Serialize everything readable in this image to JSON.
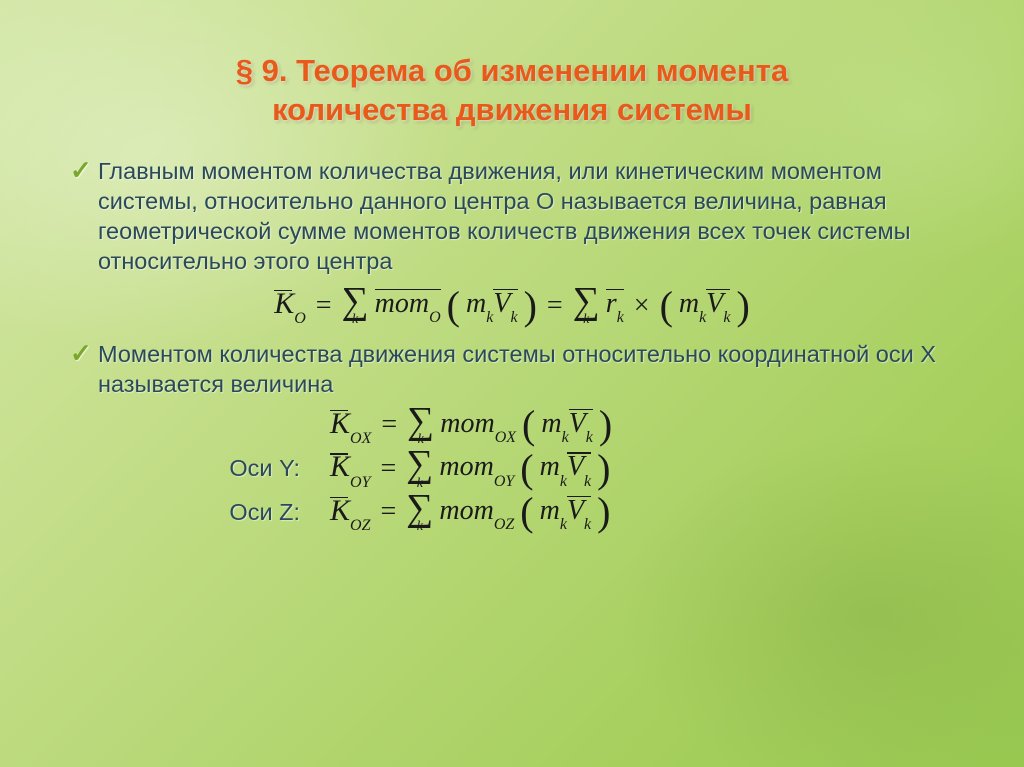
{
  "title_line1": "§ 9. Теорема об изменении момента",
  "title_line2": "количества движения системы",
  "bullet1": "Главным моментом количества движения,  или кинетическим моментом системы, относительно данного центра О называется величина, равная геометрической сумме  моментов количеств движения всех точек системы относительно этого центра",
  "bullet2": "Моментом количества движения системы относительно координатной оси X называется величина",
  "axisY": "Оси Y:",
  "axisZ": "Оси Z:",
  "colors": {
    "title": "#e85a1a",
    "body": "#2a4a5a",
    "check": "#7aa82a",
    "bg_start": "#d4e8a8",
    "bg_end": "#98c850"
  },
  "fonts": {
    "title_size": 31,
    "body_size": 23.5,
    "formula_size": 28
  },
  "formulas": {
    "f1": {
      "lhs_sub": "O",
      "mom_sub": "O",
      "has_cross": true
    },
    "f2": {
      "lhs_sub": "OX",
      "mom_sub": "OX"
    },
    "f3": {
      "lhs_sub": "OY",
      "mom_sub": "OY"
    },
    "f4": {
      "lhs_sub": "OZ",
      "mom_sub": "OZ"
    }
  }
}
